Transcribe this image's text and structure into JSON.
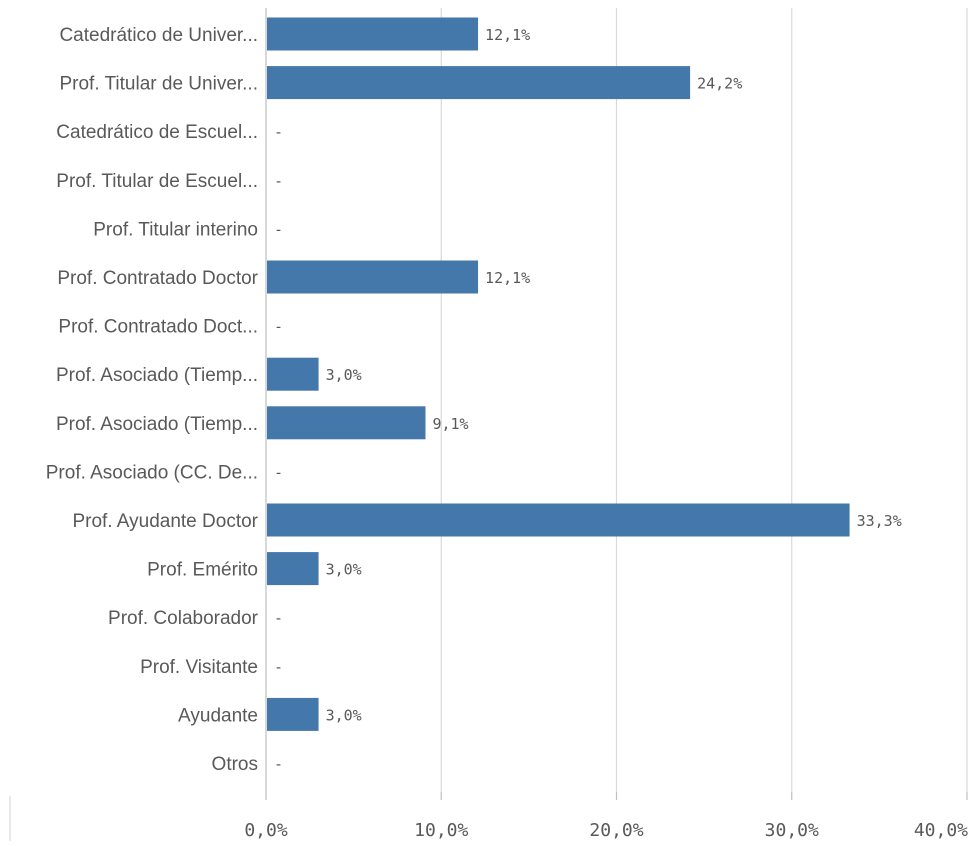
{
  "chart_data": {
    "type": "bar",
    "orientation": "horizontal",
    "categories": [
      "Catedrático de Univer...",
      "Prof. Titular de Univer...",
      "Catedrático de Escuel...",
      "Prof. Titular de Escuel...",
      "Prof. Titular interino",
      "Prof. Contratado Doctor",
      "Prof. Contratado Doct...",
      "Prof. Asociado (Tiemp...",
      "Prof. Asociado (Tiemp...",
      "Prof. Asociado (CC. De...",
      "Prof. Ayudante Doctor",
      "Prof. Emérito",
      "Prof. Colaborador",
      "Prof. Visitante",
      "Ayudante",
      "Otros"
    ],
    "values": [
      12.1,
      24.2,
      null,
      null,
      null,
      12.1,
      null,
      3.0,
      9.1,
      null,
      33.3,
      3.0,
      null,
      null,
      3.0,
      null
    ],
    "value_labels": [
      "12,1%",
      "24,2%",
      "-",
      "-",
      "-",
      "12,1%",
      "-",
      "3,0%",
      "9,1%",
      "-",
      "33,3%",
      "3,0%",
      "-",
      "-",
      "3,0%",
      "-"
    ],
    "xlim": [
      0,
      40
    ],
    "x_ticks": [
      0,
      10,
      20,
      30,
      40
    ],
    "x_tick_labels": [
      "0,0%",
      "10,0%",
      "20,0%",
      "30,0%",
      "40,0%"
    ],
    "grid": true,
    "bar_color": "#4477aa",
    "grid_color": "#d9d9d9",
    "text_color": "#595959"
  }
}
